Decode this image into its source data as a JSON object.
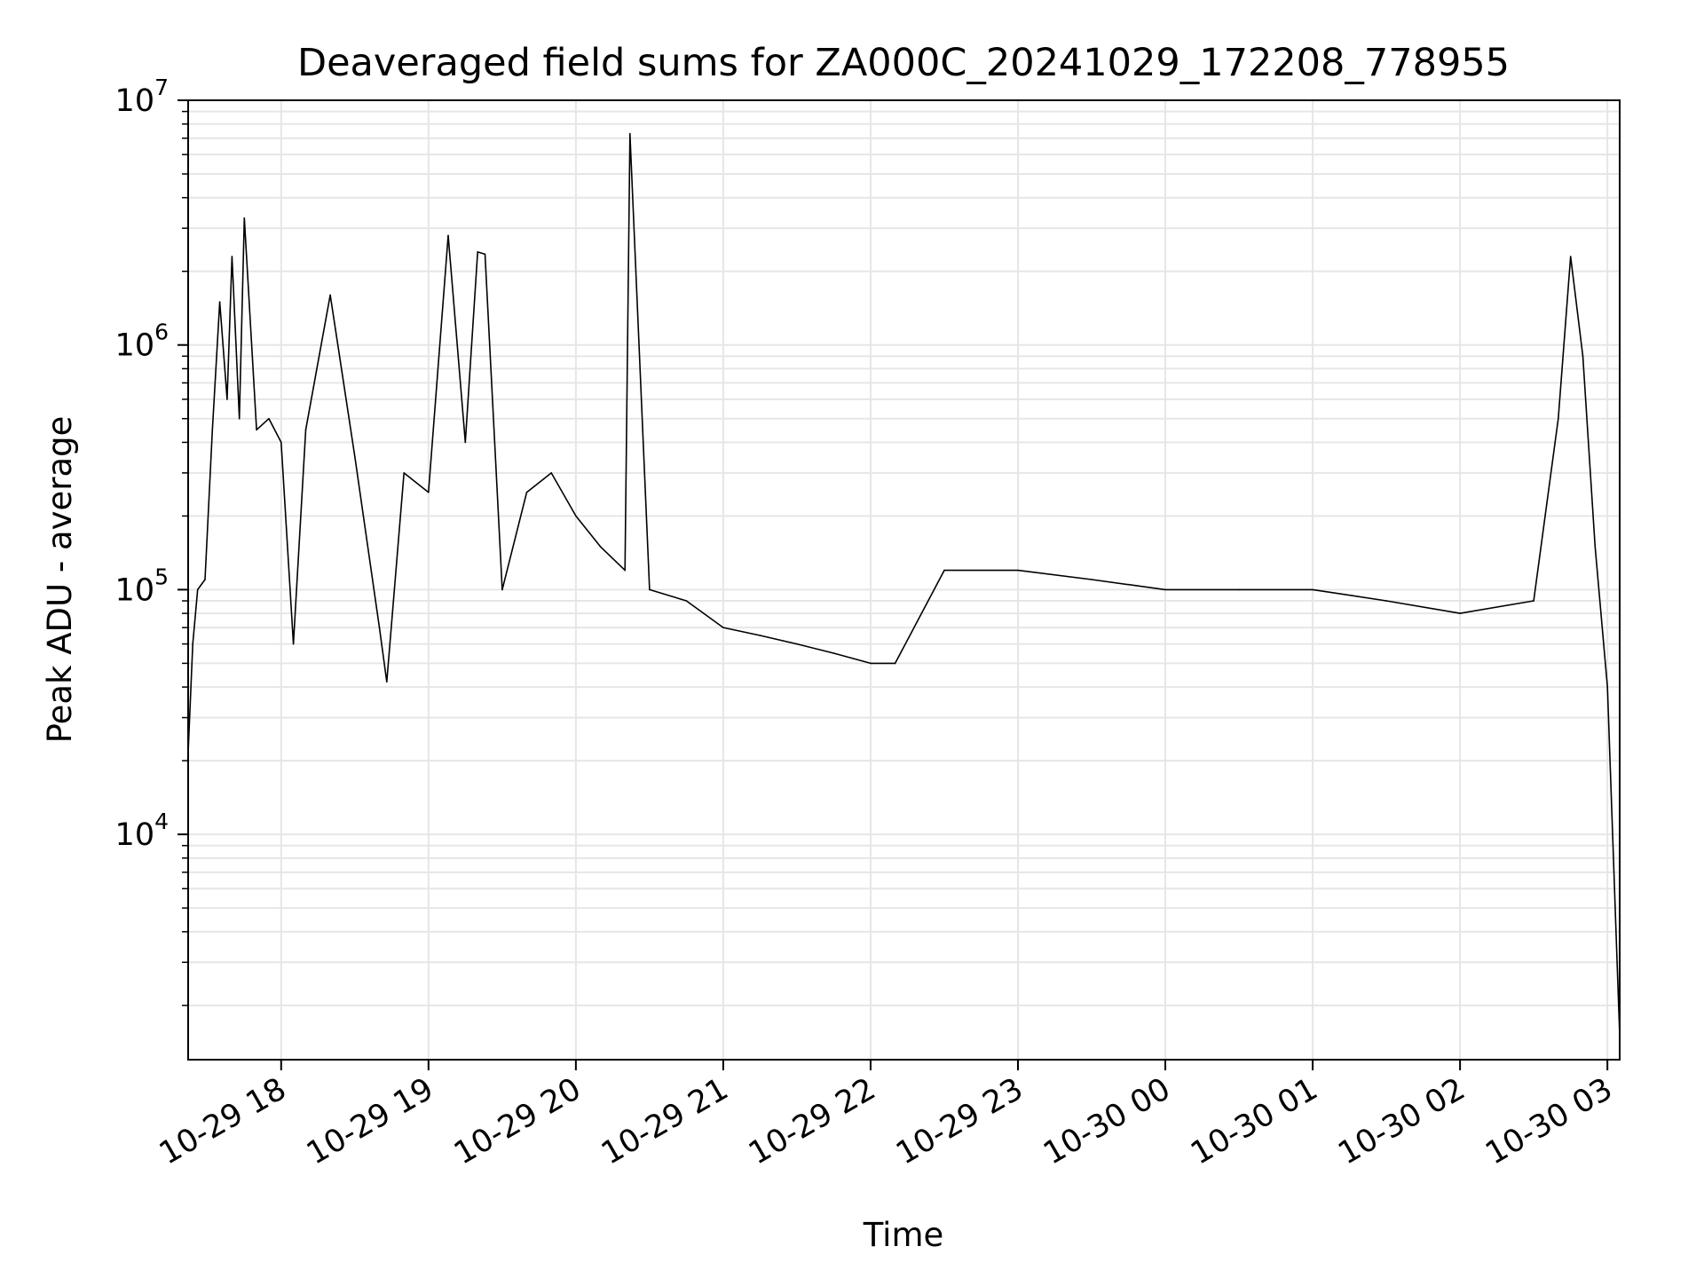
{
  "chart_data": {
    "type": "line",
    "title": "Deaveraged field sums for ZA000C_20241029_172208_778955",
    "xlabel": "Time",
    "ylabel": "Peak ADU - average",
    "x_axis": {
      "type": "datetime",
      "range": [
        "2024-10-29T17:22:08",
        "2024-10-30T03:05:00"
      ],
      "ticks": [
        {
          "t": "2024-10-29T18:00",
          "label": "10-29 18"
        },
        {
          "t": "2024-10-29T19:00",
          "label": "10-29 19"
        },
        {
          "t": "2024-10-29T20:00",
          "label": "10-29 20"
        },
        {
          "t": "2024-10-29T21:00",
          "label": "10-29 21"
        },
        {
          "t": "2024-10-29T22:00",
          "label": "10-29 22"
        },
        {
          "t": "2024-10-29T23:00",
          "label": "10-29 23"
        },
        {
          "t": "2024-10-30T00:00",
          "label": "10-30 00"
        },
        {
          "t": "2024-10-30T01:00",
          "label": "10-30 01"
        },
        {
          "t": "2024-10-30T02:00",
          "label": "10-30 02"
        },
        {
          "t": "2024-10-30T03:00",
          "label": "10-30 03"
        }
      ]
    },
    "y_axis": {
      "scale": "log",
      "range": [
        1200,
        10000000
      ],
      "ticks": [
        {
          "value": 10000,
          "base": "10",
          "exp": "4"
        },
        {
          "value": 100000,
          "base": "10",
          "exp": "5"
        },
        {
          "value": 1000000,
          "base": "10",
          "exp": "6"
        },
        {
          "value": 10000000,
          "base": "10",
          "exp": "7"
        }
      ]
    },
    "grid": true,
    "line_color": "#000000",
    "grid_color": "#e6e6e6",
    "series": [
      {
        "points": [
          [
            "2024-10-29T17:22",
            20000
          ],
          [
            "2024-10-29T17:24",
            60000
          ],
          [
            "2024-10-29T17:26",
            100000
          ],
          [
            "2024-10-29T17:29",
            110000
          ],
          [
            "2024-10-29T17:32",
            450000
          ],
          [
            "2024-10-29T17:35",
            1500000
          ],
          [
            "2024-10-29T17:38",
            600000
          ],
          [
            "2024-10-29T17:40",
            2300000
          ],
          [
            "2024-10-29T17:43",
            500000
          ],
          [
            "2024-10-29T17:45",
            3300000
          ],
          [
            "2024-10-29T17:50",
            450000
          ],
          [
            "2024-10-29T17:55",
            500000
          ],
          [
            "2024-10-29T18:00",
            400000
          ],
          [
            "2024-10-29T18:05",
            60000
          ],
          [
            "2024-10-29T18:10",
            450000
          ],
          [
            "2024-10-29T18:20",
            1600000
          ],
          [
            "2024-10-29T18:30",
            350000
          ],
          [
            "2024-10-29T18:40",
            70000
          ],
          [
            "2024-10-29T18:43",
            42000
          ],
          [
            "2024-10-29T18:50",
            300000
          ],
          [
            "2024-10-29T19:00",
            250000
          ],
          [
            "2024-10-29T19:08",
            2800000
          ],
          [
            "2024-10-29T19:15",
            400000
          ],
          [
            "2024-10-29T19:20",
            2400000
          ],
          [
            "2024-10-29T19:23",
            2350000
          ],
          [
            "2024-10-29T19:30",
            100000
          ],
          [
            "2024-10-29T19:40",
            250000
          ],
          [
            "2024-10-29T19:50",
            300000
          ],
          [
            "2024-10-29T20:00",
            200000
          ],
          [
            "2024-10-29T20:10",
            150000
          ],
          [
            "2024-10-29T20:20",
            120000
          ],
          [
            "2024-10-29T20:22",
            7300000
          ],
          [
            "2024-10-29T20:30",
            100000
          ],
          [
            "2024-10-29T20:45",
            90000
          ],
          [
            "2024-10-29T21:00",
            70000
          ],
          [
            "2024-10-29T21:15",
            65000
          ],
          [
            "2024-10-29T21:30",
            60000
          ],
          [
            "2024-10-29T21:45",
            55000
          ],
          [
            "2024-10-29T22:00",
            50000
          ],
          [
            "2024-10-29T22:10",
            50000
          ],
          [
            "2024-10-29T22:30",
            120000
          ],
          [
            "2024-10-29T23:00",
            120000
          ],
          [
            "2024-10-29T23:30",
            110000
          ],
          [
            "2024-10-30T00:00",
            100000
          ],
          [
            "2024-10-30T00:30",
            100000
          ],
          [
            "2024-10-30T01:00",
            100000
          ],
          [
            "2024-10-30T01:30",
            90000
          ],
          [
            "2024-10-30T02:00",
            80000
          ],
          [
            "2024-10-30T02:30",
            90000
          ],
          [
            "2024-10-30T02:40",
            500000
          ],
          [
            "2024-10-30T02:45",
            2300000
          ],
          [
            "2024-10-30T02:50",
            900000
          ],
          [
            "2024-10-30T02:55",
            150000
          ],
          [
            "2024-10-30T03:00",
            40000
          ],
          [
            "2024-10-30T03:05",
            1500
          ]
        ]
      }
    ]
  }
}
